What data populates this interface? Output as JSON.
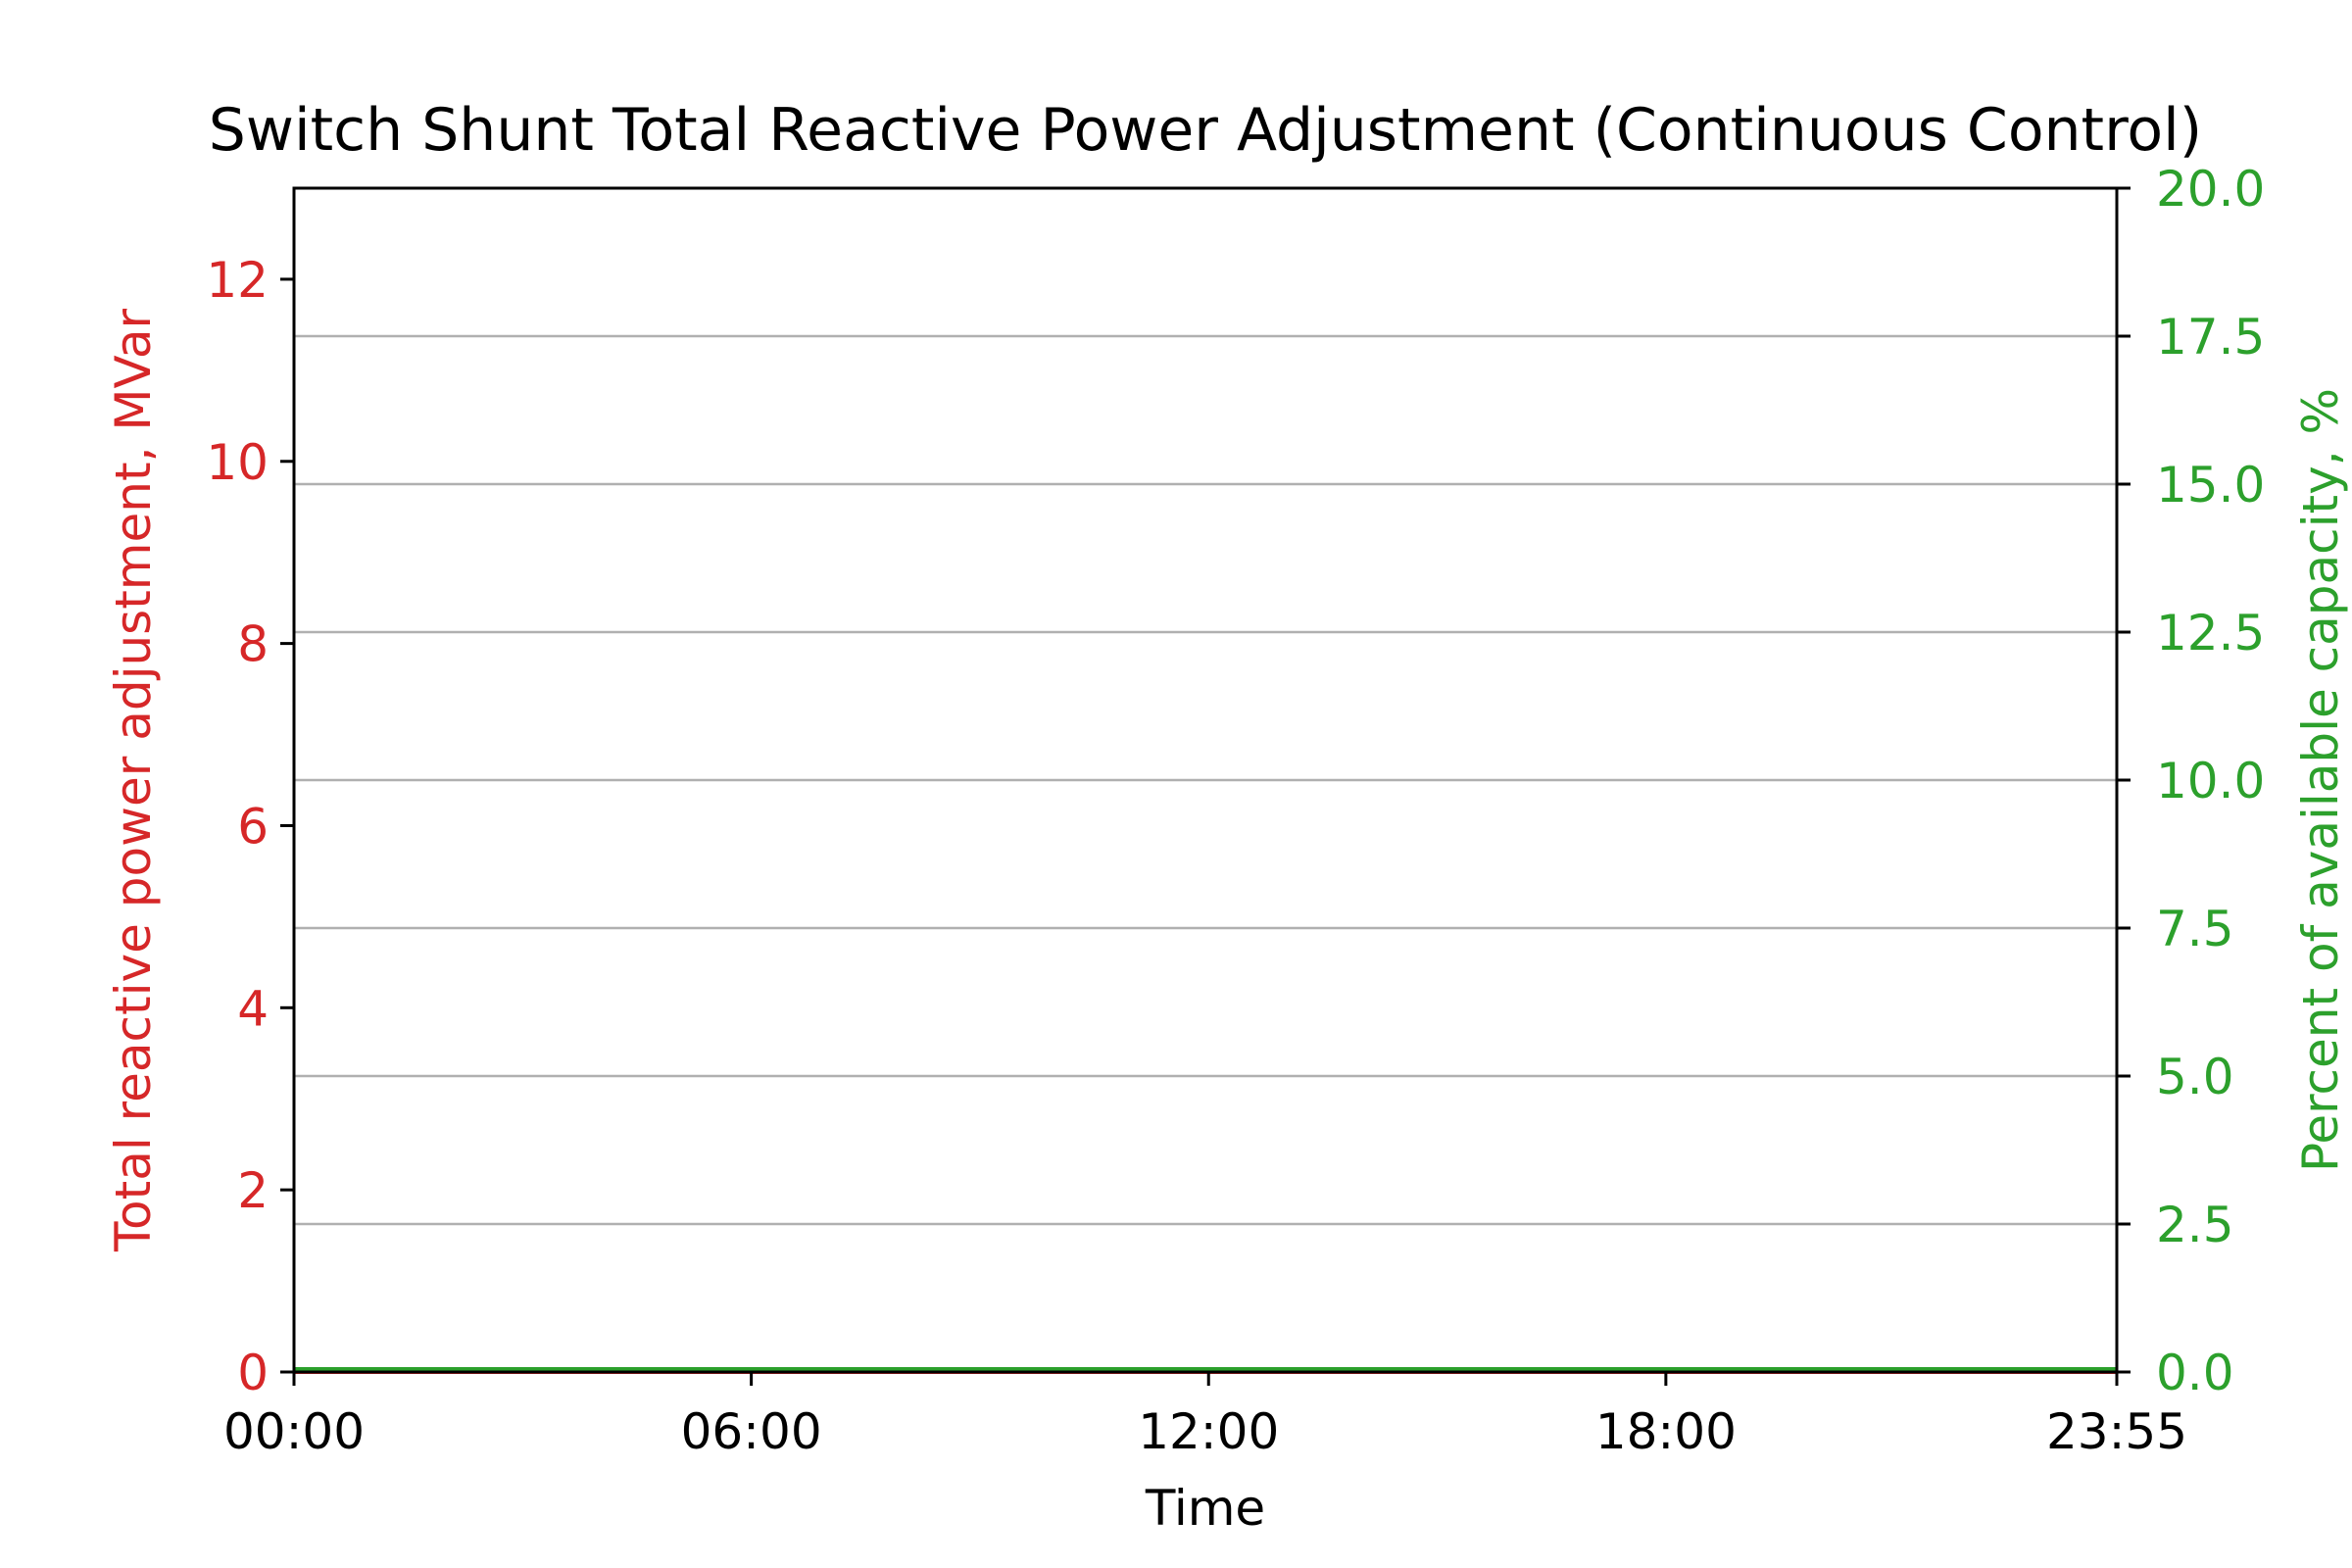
{
  "chart_data": {
    "type": "line",
    "title": "Switch Shunt Total Reactive Power Adjustment (Continuous Control)",
    "xlabel": "Time",
    "ylabel_left": "Total reactive power adjustment, MVar",
    "ylabel_right": "Percent of available capacity, %",
    "x_ticks": [
      "00:00",
      "06:00",
      "12:00",
      "18:00",
      "23:55"
    ],
    "x_range_minutes": [
      0,
      1435
    ],
    "x_tick_minutes": [
      0,
      360,
      720,
      1080,
      1435
    ],
    "y_left": {
      "range": [
        0,
        13
      ],
      "ticks": [
        0,
        2,
        4,
        6,
        8,
        10,
        12
      ],
      "tick_labels": [
        "0",
        "2",
        "4",
        "6",
        "8",
        "10",
        "12"
      ],
      "color": "#d62728"
    },
    "y_right": {
      "range": [
        0,
        20
      ],
      "ticks": [
        0,
        2.5,
        5,
        7.5,
        10,
        12.5,
        15,
        17.5,
        20
      ],
      "tick_labels": [
        "0.0",
        "2.5",
        "5.0",
        "7.5",
        "10.0",
        "12.5",
        "15.0",
        "17.5",
        "20.0"
      ],
      "color": "#2ca02c"
    },
    "grid": "horizontal",
    "series": [
      {
        "axis": "left",
        "color": "#d62728",
        "x_minutes": [
          0,
          1435
        ],
        "values": [
          0,
          0
        ]
      },
      {
        "axis": "right",
        "color": "#2ca02c",
        "x_minutes": [
          0,
          1435
        ],
        "values": [
          0.05,
          0.05
        ]
      }
    ]
  }
}
